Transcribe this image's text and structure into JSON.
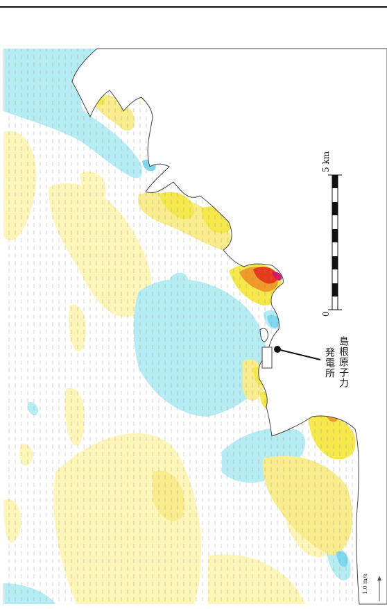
{
  "map": {
    "site_label_line1": "島根原子力",
    "site_label_line2": "発電所",
    "scale_zero": "0",
    "scale_max": "5 km",
    "reference_vector_label": "1.0 m/s",
    "colors": {
      "land": "#ffffff",
      "sea_base": "#ffffff",
      "cyan": "#b6ecf4",
      "light_yellow": "#fdf6b8",
      "yellow": "#f8ec8c",
      "bright_yellow": "#f5e84a",
      "orange": "#f09a2a",
      "red": "#e63a1c",
      "magenta": "#d21a66",
      "vector": "#666666"
    }
  }
}
